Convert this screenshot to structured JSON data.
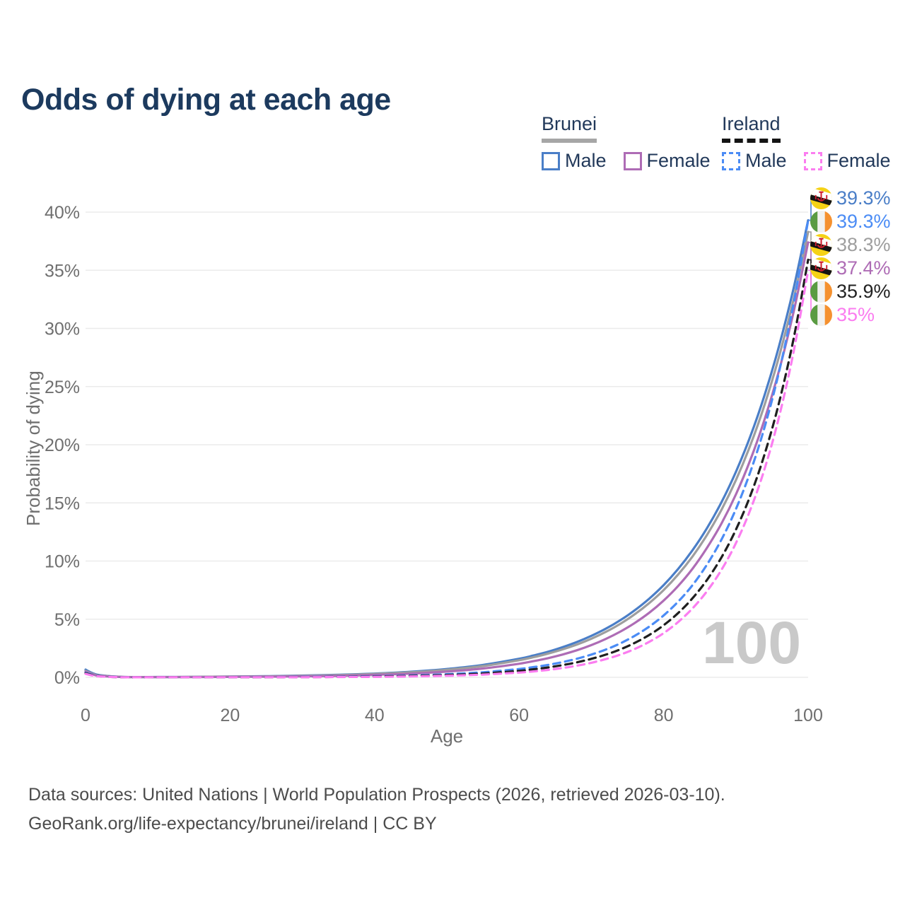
{
  "title": "Odds of dying at each age",
  "legend": {
    "groups": [
      {
        "country": "Brunei",
        "underline_style": "solid",
        "underline_color": "#a6a6a6",
        "items": [
          {
            "label": "Male",
            "color": "#4a7ec7",
            "line_style": "solid"
          },
          {
            "label": "Female",
            "color": "#ae6cb5",
            "line_style": "solid"
          }
        ]
      },
      {
        "country": "Ireland",
        "underline_style": "dashed",
        "underline_color": "#141414",
        "items": [
          {
            "label": "Male",
            "color": "#4b8cf5",
            "line_style": "dashed"
          },
          {
            "label": "Female",
            "color": "#fb7df0",
            "line_style": "dashed"
          }
        ]
      }
    ]
  },
  "chart_data": {
    "type": "line",
    "title": "Odds of dying at each age",
    "xlabel": "Age",
    "ylabel": "Probability of dying",
    "x_ticks": [
      0,
      20,
      40,
      60,
      80,
      100
    ],
    "y_tick_values": [
      0,
      5,
      10,
      15,
      20,
      25,
      30,
      35,
      40
    ],
    "y_tick_labels": [
      "0%",
      "5%",
      "10%",
      "15%",
      "20%",
      "25%",
      "30%",
      "35%",
      "40%"
    ],
    "xlim": [
      0,
      100
    ],
    "ylim_percent": [
      0,
      40
    ],
    "grid": "horizontal",
    "ages": [
      0,
      1,
      2,
      5,
      10,
      15,
      20,
      25,
      30,
      35,
      40,
      45,
      50,
      55,
      60,
      62,
      64,
      66,
      68,
      70,
      72,
      74,
      76,
      78,
      80,
      82,
      84,
      86,
      88,
      90,
      92,
      94,
      96,
      98,
      100
    ],
    "series": [
      {
        "name": "Brunei Male",
        "country": "Brunei",
        "group": "Male",
        "color": "#4a7ec7",
        "line_style": "solid",
        "end_value_percent": 39.3,
        "values": [
          0.66,
          0.35,
          0.19,
          0.04,
          0.03,
          0.04,
          0.07,
          0.1,
          0.15,
          0.22,
          0.32,
          0.48,
          0.72,
          1.07,
          1.6,
          1.88,
          2.2,
          2.59,
          3.04,
          3.57,
          4.18,
          4.91,
          5.76,
          6.76,
          7.93,
          9.31,
          10.93,
          12.82,
          15.05,
          17.66,
          20.72,
          24.32,
          28.54,
          33.49,
          39.3
        ]
      },
      {
        "name": "Brunei (both sexes)",
        "country": "Brunei",
        "group": "All",
        "color": "#9e9e9e",
        "line_style": "solid",
        "end_value_percent": 38.3,
        "values": [
          0.56,
          0.29,
          0.16,
          0.04,
          0.02,
          0.04,
          0.06,
          0.08,
          0.13,
          0.19,
          0.29,
          0.43,
          0.65,
          0.97,
          1.47,
          1.73,
          2.04,
          2.4,
          2.82,
          3.32,
          3.91,
          4.6,
          5.42,
          6.38,
          7.5,
          8.83,
          10.39,
          12.24,
          14.4,
          16.95,
          19.95,
          23.49,
          27.64,
          32.54,
          38.3
        ]
      },
      {
        "name": "Brunei Female",
        "country": "Brunei",
        "group": "Female",
        "color": "#ae6cb5",
        "line_style": "solid",
        "end_value_percent": 37.4,
        "values": [
          0.49,
          0.25,
          0.13,
          0.03,
          0.02,
          0.02,
          0.04,
          0.06,
          0.09,
          0.13,
          0.21,
          0.32,
          0.49,
          0.76,
          1.17,
          1.39,
          1.65,
          1.96,
          2.33,
          2.77,
          3.3,
          3.93,
          4.67,
          5.55,
          6.6,
          7.85,
          9.34,
          11.13,
          13.22,
          15.72,
          18.69,
          22.23,
          26.43,
          31.46,
          37.4
        ]
      },
      {
        "name": "Ireland Male",
        "country": "Ireland",
        "group": "Male",
        "color": "#4b8cf5",
        "line_style": "dashed",
        "end_value_percent": 39.3,
        "values": [
          0.4,
          0.21,
          0.11,
          0.02,
          0.01,
          0.01,
          0.01,
          0.02,
          0.04,
          0.06,
          0.1,
          0.16,
          0.27,
          0.44,
          0.72,
          0.88,
          1.07,
          1.31,
          1.6,
          1.96,
          2.39,
          2.92,
          3.57,
          4.36,
          5.32,
          6.5,
          7.93,
          9.69,
          11.84,
          14.46,
          17.66,
          21.57,
          26.34,
          32.18,
          39.3
        ]
      },
      {
        "name": "Ireland (both sexes)",
        "country": "Ireland",
        "group": "All",
        "color": "#1f1f1f",
        "line_style": "dashed",
        "end_value_percent": 35.9,
        "values": [
          0.35,
          0.18,
          0.09,
          0.01,
          0.01,
          0.01,
          0.01,
          0.01,
          0.02,
          0.04,
          0.07,
          0.12,
          0.2,
          0.33,
          0.56,
          0.69,
          0.85,
          1.05,
          1.29,
          1.59,
          1.95,
          2.4,
          2.96,
          3.64,
          4.48,
          5.52,
          6.8,
          8.37,
          10.31,
          12.69,
          15.62,
          19.24,
          23.68,
          29.16,
          35.9
        ]
      },
      {
        "name": "Ireland Female",
        "country": "Ireland",
        "group": "Female",
        "color": "#fb7df0",
        "line_style": "dashed",
        "end_value_percent": 35.0,
        "values": [
          0.3,
          0.15,
          0.08,
          0.01,
          0.01,
          0.01,
          0.01,
          0.01,
          0.01,
          0.03,
          0.04,
          0.08,
          0.14,
          0.24,
          0.41,
          0.51,
          0.64,
          0.8,
          1.0,
          1.25,
          1.57,
          1.95,
          2.44,
          3.05,
          3.8,
          4.75,
          5.93,
          7.4,
          9.24,
          11.53,
          14.4,
          17.98,
          22.45,
          28.03,
          35.0
        ]
      }
    ],
    "end_labels": [
      {
        "text": "39.3%",
        "flag": "brunei",
        "series": 0,
        "color": "#4a7ec7"
      },
      {
        "text": "39.3%",
        "flag": "ireland",
        "series": 3,
        "color": "#4b8cf5"
      },
      {
        "text": "38.3%",
        "flag": "brunei",
        "series": 1,
        "color": "#9e9e9e"
      },
      {
        "text": "37.4%",
        "flag": "brunei",
        "series": 2,
        "color": "#ae6cb5"
      },
      {
        "text": "35.9%",
        "flag": "ireland",
        "series": 4,
        "color": "#222222"
      },
      {
        "text": "35%",
        "flag": "ireland",
        "series": 5,
        "color": "#fb7df0"
      }
    ],
    "legend_position": "top-right"
  },
  "age_watermark": "100",
  "footer": {
    "line1": "Data sources: United Nations | World Population Prospects (2026, retrieved 2026-03-10).",
    "line2": "GeoRank.org/life-expectancy/brunei/ireland | CC BY"
  },
  "colors": {
    "title_navy": "#1c3a5e",
    "gridline": "#ebebeb",
    "axis_text": "#6f6f6f",
    "watermark_gray": "#c9c9c9",
    "footer_gray": "#4c4c4c"
  }
}
